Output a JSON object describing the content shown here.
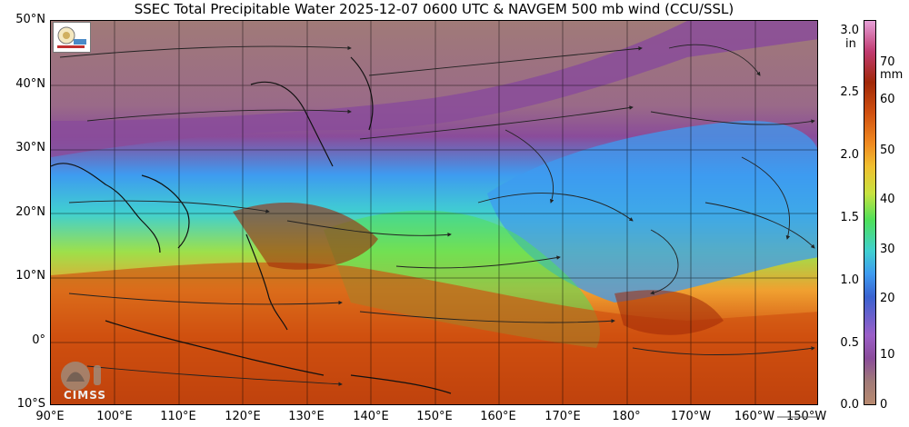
{
  "title": "SSEC Total Precipitable Water  2025-12-07 0600 UTC & NAVGEM 500 mb wind (CCU/SSL)",
  "lat_labels": [
    "50°N",
    "40°N",
    "30°N",
    "20°N",
    "10°N",
    "0°",
    "10°S"
  ],
  "lon_labels": [
    "90°E",
    "100°E",
    "110°E",
    "120°E",
    "130°E",
    "140°E",
    "150°E",
    "160°E",
    "170°E",
    "180°",
    "170°W",
    "160°W",
    "150°W"
  ],
  "colorbar": {
    "unit_in": "in",
    "unit_mm": "mm",
    "inch_ticks": [
      "3.0",
      "2.5",
      "2.0",
      "1.5",
      "1.0",
      "0.5",
      "0.0"
    ],
    "mm_ticks": [
      "70",
      "60",
      "50",
      "40",
      "30",
      "20",
      "10",
      "0"
    ]
  },
  "logo_text": "CIMSS",
  "colors": {
    "dry_high_lat": "#a07a78",
    "moist_band": "#8a4c9a",
    "mid": "#40d0d0",
    "wet": "#d05010",
    "very_wet": "#a02808"
  }
}
